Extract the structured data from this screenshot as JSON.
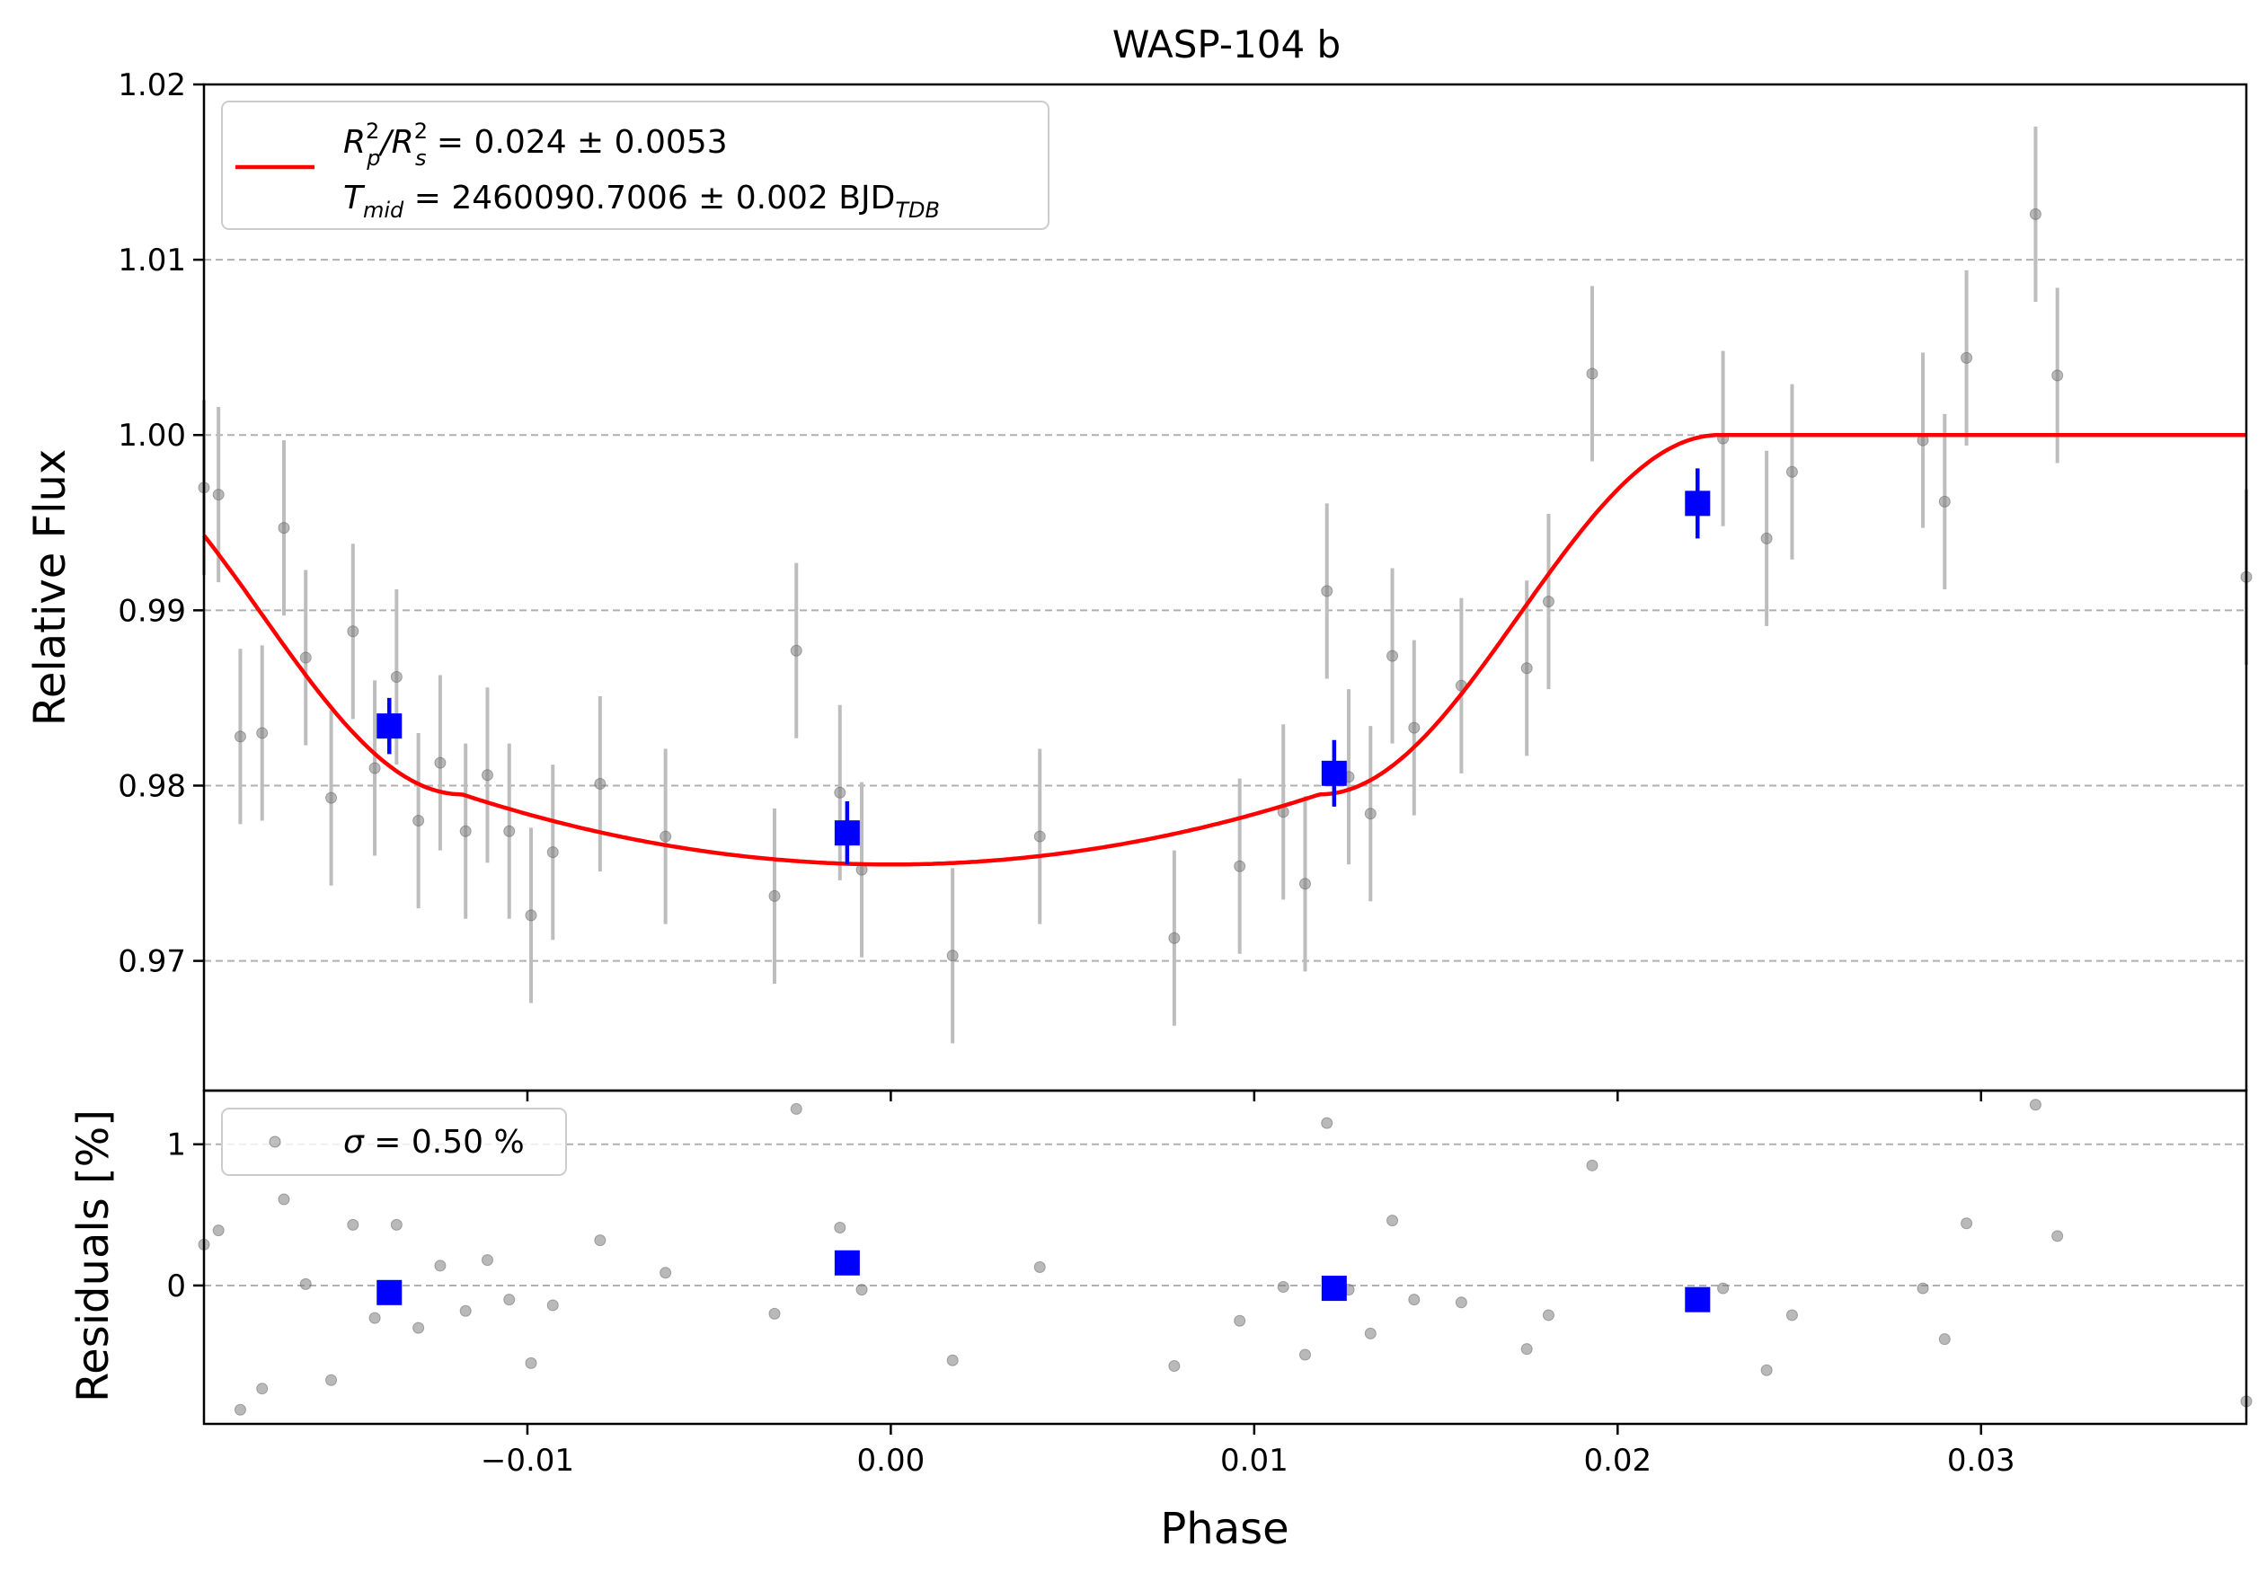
{
  "chart_data": [
    {
      "type": "scatter",
      "title": "WASP-104 b",
      "xlabel": "",
      "ylabel": "Relative Flux",
      "xlim": [
        -0.0189,
        0.0373
      ],
      "ylim": [
        0.9626,
        1.02
      ],
      "yticks": [
        0.97,
        0.98,
        0.99,
        1.0,
        1.01,
        1.02
      ],
      "ytick_labels": [
        "0.97",
        "0.98",
        "0.99",
        "1.00",
        "1.01",
        "1.02"
      ],
      "grid": "horizontal dashed",
      "legend_placement": "top-left",
      "legend": {
        "line1_a": "R",
        "line1_a_sup": "2",
        "line1_a_sub": "p",
        "line1_slash": "/R",
        "line1_b_sup": "2",
        "line1_b_sub": "s",
        "line1_rest": " = 0.024 ± 0.0053",
        "line2_a": "T",
        "line2_a_sub": "mid",
        "line2_rest": " = 2460090.7006 ± 0.002 BJD",
        "line2_sub": "TDB"
      },
      "colors": {
        "model": "#ff0000",
        "raw": "#808080",
        "binned": "#0000ff",
        "grid": "#b0b0b0"
      },
      "model_params": {
        "rp2": 0.024,
        "tmid_phase": 0.0,
        "t14_half": 0.0228,
        "t23_half": 0.0118,
        "depth": 0.0245
      },
      "raw_points": [
        {
          "x": -0.0189,
          "y": 0.997,
          "err": 0.005
        },
        {
          "x": -0.0185,
          "y": 0.9966,
          "err": 0.005
        },
        {
          "x": -0.0179,
          "y": 0.9828,
          "err": 0.005
        },
        {
          "x": -0.0173,
          "y": 0.983,
          "err": 0.005
        },
        {
          "x": -0.0167,
          "y": 0.9947,
          "err": 0.005
        },
        {
          "x": -0.0161,
          "y": 0.9873,
          "err": 0.005
        },
        {
          "x": -0.0154,
          "y": 0.9793,
          "err": 0.005
        },
        {
          "x": -0.0148,
          "y": 0.9888,
          "err": 0.005
        },
        {
          "x": -0.0142,
          "y": 0.981,
          "err": 0.005
        },
        {
          "x": -0.0136,
          "y": 0.9862,
          "err": 0.005
        },
        {
          "x": -0.013,
          "y": 0.978,
          "err": 0.005
        },
        {
          "x": -0.0124,
          "y": 0.9813,
          "err": 0.005
        },
        {
          "x": -0.0117,
          "y": 0.9774,
          "err": 0.005
        },
        {
          "x": -0.0111,
          "y": 0.9806,
          "err": 0.005
        },
        {
          "x": -0.0105,
          "y": 0.9774,
          "err": 0.005
        },
        {
          "x": -0.0099,
          "y": 0.9726,
          "err": 0.005
        },
        {
          "x": -0.0093,
          "y": 0.9762,
          "err": 0.005
        },
        {
          "x": -0.008,
          "y": 0.9801,
          "err": 0.005
        },
        {
          "x": -0.0062,
          "y": 0.9771,
          "err": 0.005
        },
        {
          "x": -0.0032,
          "y": 0.9737,
          "err": 0.005
        },
        {
          "x": -0.0026,
          "y": 0.9877,
          "err": 0.005
        },
        {
          "x": -0.0014,
          "y": 0.9796,
          "err": 0.005
        },
        {
          "x": -0.0008,
          "y": 0.9752,
          "err": 0.005
        },
        {
          "x": 0.0017,
          "y": 0.9703,
          "err": 0.005
        },
        {
          "x": 0.0041,
          "y": 0.9771,
          "err": 0.005
        },
        {
          "x": 0.0078,
          "y": 0.9713,
          "err": 0.005
        },
        {
          "x": 0.0096,
          "y": 0.9754,
          "err": 0.005
        },
        {
          "x": 0.0108,
          "y": 0.9785,
          "err": 0.005
        },
        {
          "x": 0.0114,
          "y": 0.9744,
          "err": 0.005
        },
        {
          "x": 0.012,
          "y": 0.9911,
          "err": 0.005
        },
        {
          "x": 0.0126,
          "y": 0.9805,
          "err": 0.005
        },
        {
          "x": 0.0132,
          "y": 0.9784,
          "err": 0.005
        },
        {
          "x": 0.0138,
          "y": 0.9874,
          "err": 0.005
        },
        {
          "x": 0.0144,
          "y": 0.9833,
          "err": 0.005
        },
        {
          "x": 0.0157,
          "y": 0.9857,
          "err": 0.005
        },
        {
          "x": 0.0175,
          "y": 0.9867,
          "err": 0.005
        },
        {
          "x": 0.0181,
          "y": 0.9905,
          "err": 0.005
        },
        {
          "x": 0.0193,
          "y": 1.0035,
          "err": 0.005
        },
        {
          "x": 0.0229,
          "y": 0.9998,
          "err": 0.005
        },
        {
          "x": 0.0241,
          "y": 0.9941,
          "err": 0.005
        },
        {
          "x": 0.0248,
          "y": 0.9979,
          "err": 0.005
        },
        {
          "x": 0.0284,
          "y": 0.9997,
          "err": 0.005
        },
        {
          "x": 0.029,
          "y": 0.9962,
          "err": 0.005
        },
        {
          "x": 0.0296,
          "y": 1.0044,
          "err": 0.005
        },
        {
          "x": 0.0315,
          "y": 1.0126,
          "err": 0.005
        },
        {
          "x": 0.0321,
          "y": 1.0034,
          "err": 0.005
        },
        {
          "x": 0.0373,
          "y": 0.9919,
          "err": 0.005
        }
      ],
      "binned_points": [
        {
          "x": -0.0138,
          "y": 0.9834,
          "err": 0.0016
        },
        {
          "x": -0.0012,
          "y": 0.9773,
          "err": 0.0018
        },
        {
          "x": 0.0122,
          "y": 0.9807,
          "err": 0.0019
        },
        {
          "x": 0.0222,
          "y": 0.9961,
          "err": 0.002
        }
      ]
    },
    {
      "type": "scatter",
      "xlabel": "Phase",
      "ylabel": "Residuals [%]",
      "xlim": [
        -0.0189,
        0.0373
      ],
      "ylim": [
        -0.98,
        1.38
      ],
      "yticks": [
        0,
        1
      ],
      "ytick_labels": [
        "0",
        "1"
      ],
      "xticks": [
        -0.01,
        0.0,
        0.01,
        0.02,
        0.03
      ],
      "xtick_labels": [
        "−0.01",
        "0.00",
        "0.01",
        "0.02",
        "0.03"
      ],
      "grid": "horizontal dashed",
      "legend_placement": "top-left",
      "legend": {
        "sigma_symbol": "σ",
        "sigma_rest": " = 0.50 %"
      },
      "raw_residuals": [
        {
          "x": -0.0189,
          "y": 0.29
        },
        {
          "x": -0.0185,
          "y": 0.39
        },
        {
          "x": -0.0179,
          "y": -0.88
        },
        {
          "x": -0.0173,
          "y": -0.73
        },
        {
          "x": -0.0167,
          "y": 0.61
        },
        {
          "x": -0.0161,
          "y": 0.01
        },
        {
          "x": -0.0154,
          "y": -0.67
        },
        {
          "x": -0.0148,
          "y": 0.43
        },
        {
          "x": -0.0142,
          "y": -0.23
        },
        {
          "x": -0.0136,
          "y": 0.43
        },
        {
          "x": -0.013,
          "y": -0.3
        },
        {
          "x": -0.0124,
          "y": 0.14
        },
        {
          "x": -0.0117,
          "y": -0.18
        },
        {
          "x": -0.0111,
          "y": 0.18
        },
        {
          "x": -0.0105,
          "y": -0.1
        },
        {
          "x": -0.0099,
          "y": -0.55
        },
        {
          "x": -0.0093,
          "y": -0.14
        },
        {
          "x": -0.008,
          "y": 0.32
        },
        {
          "x": -0.0062,
          "y": 0.09
        },
        {
          "x": -0.0032,
          "y": -0.2
        },
        {
          "x": -0.0026,
          "y": 1.25
        },
        {
          "x": -0.0014,
          "y": 0.41
        },
        {
          "x": -0.0008,
          "y": -0.03
        },
        {
          "x": 0.0017,
          "y": -0.53
        },
        {
          "x": 0.0041,
          "y": 0.13
        },
        {
          "x": 0.0078,
          "y": -0.57
        },
        {
          "x": 0.0096,
          "y": -0.25
        },
        {
          "x": 0.0108,
          "y": -0.01
        },
        {
          "x": 0.0114,
          "y": -0.49
        },
        {
          "x": 0.012,
          "y": 1.15
        },
        {
          "x": 0.0126,
          "y": -0.03
        },
        {
          "x": 0.0132,
          "y": -0.34
        },
        {
          "x": 0.0138,
          "y": 0.46
        },
        {
          "x": 0.0144,
          "y": -0.1
        },
        {
          "x": 0.0157,
          "y": -0.12
        },
        {
          "x": 0.0175,
          "y": -0.45
        },
        {
          "x": 0.0181,
          "y": -0.21
        },
        {
          "x": 0.0193,
          "y": 0.85
        },
        {
          "x": 0.0229,
          "y": -0.02
        },
        {
          "x": 0.0241,
          "y": -0.6
        },
        {
          "x": 0.0248,
          "y": -0.21
        },
        {
          "x": 0.0284,
          "y": -0.02
        },
        {
          "x": 0.029,
          "y": -0.38
        },
        {
          "x": 0.0296,
          "y": 0.44
        },
        {
          "x": 0.0315,
          "y": 1.28
        },
        {
          "x": 0.0321,
          "y": 0.35
        },
        {
          "x": 0.0373,
          "y": -0.82
        }
      ],
      "binned_residuals": [
        {
          "x": -0.0138,
          "y": -0.05
        },
        {
          "x": -0.0012,
          "y": 0.16
        },
        {
          "x": 0.0122,
          "y": -0.02
        },
        {
          "x": 0.0222,
          "y": -0.1
        }
      ]
    }
  ]
}
